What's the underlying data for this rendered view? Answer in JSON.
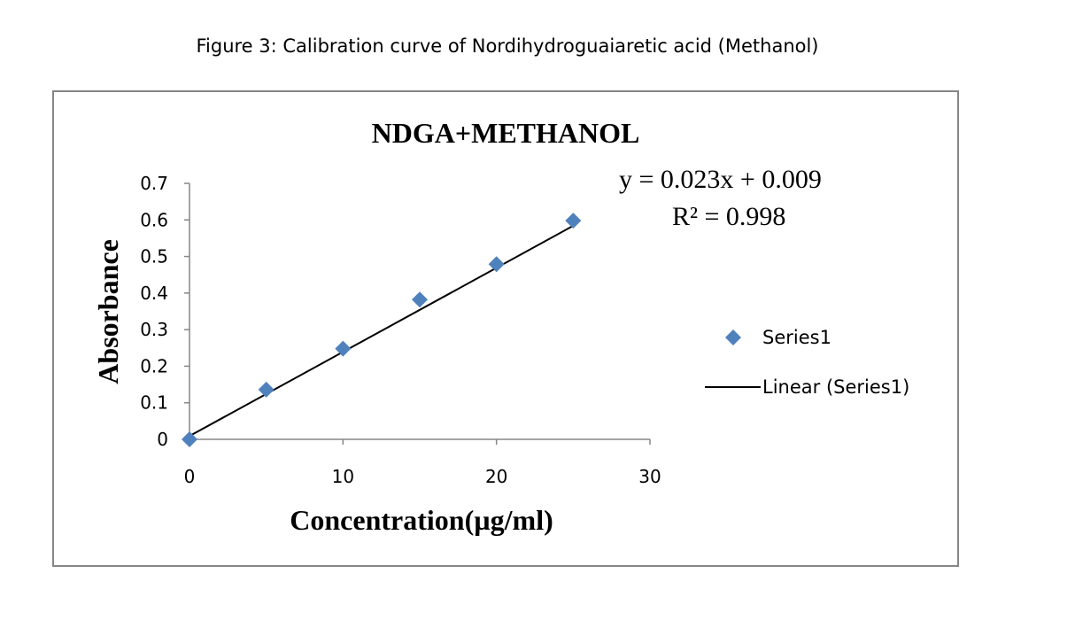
{
  "caption": "Figure 3: Calibration curve of Nordihydroguaiaretic acid (Methanol)",
  "chart_data": {
    "type": "scatter",
    "title": "NDGA+METHANOL",
    "xlabel": "Concentration(µg/ml)",
    "ylabel": "Absorbance",
    "xlim": [
      0,
      30
    ],
    "ylim": [
      0,
      0.7
    ],
    "x_ticks": [
      "0",
      "10",
      "20",
      "30"
    ],
    "y_ticks": [
      "0",
      "0.1",
      "0.2",
      "0.3",
      "0.4",
      "0.5",
      "0.6",
      "0.7"
    ],
    "grid": false,
    "legend_position": "right",
    "series": [
      {
        "name": "Series1",
        "marker": "diamond",
        "color": "#4F81BD",
        "x": [
          0,
          5,
          10,
          15,
          20,
          25
        ],
        "y": [
          0,
          0.136,
          0.248,
          0.382,
          0.479,
          0.598
        ]
      }
    ],
    "trendline": {
      "name": "Linear (Series1)",
      "color": "#000000",
      "slope": 0.023,
      "intercept": 0.009,
      "equation": "y = 0.023x + 0.009",
      "r_squared": "R² = 0.998"
    }
  }
}
